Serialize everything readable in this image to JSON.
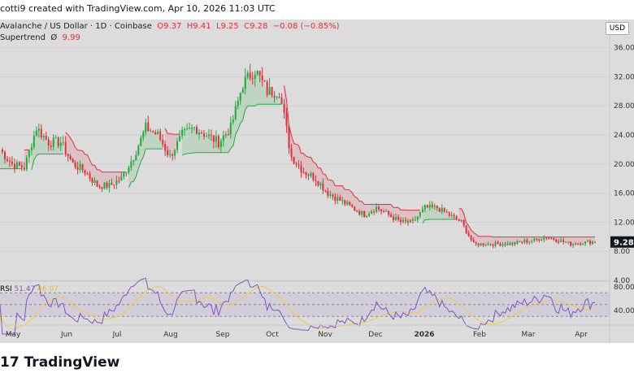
{
  "header": {
    "credit": "cotti9 created with TradingView.com, Apr 10, 2026 11:03 UTC"
  },
  "legend": {
    "symbol": "Avalanche / US Dollar · 1D · Coinbase",
    "open": "O9.37",
    "high": "H9.41",
    "low": "L9.25",
    "close": "C9.28",
    "change": "−0.08 (−0.85%)",
    "indicator": "Supertrend",
    "indicator_icon": "Ø",
    "indicator_value": "9.99"
  },
  "rsi_legend": {
    "name": "RSI",
    "value": "51.47",
    "ma": "46.07"
  },
  "currency_button": "USD",
  "logo": "TradingView",
  "colors": {
    "up": "#22ab3c",
    "down": "#e0303b",
    "rsi": "#7e57c2",
    "rsi_ma": "#f5c842"
  },
  "chart_data": {
    "type": "candlestick",
    "symbol": "AVAX/USD",
    "ylim": [
      4,
      37
    ],
    "y_ticks": [
      "36.00",
      "32.00",
      "28.00",
      "24.00",
      "20.00",
      "16.00",
      "12.00",
      "8.00",
      "4.00"
    ],
    "x_ticks": [
      "May",
      "Jun",
      "Jul",
      "Aug",
      "Sep",
      "Oct",
      "Nov",
      "Dec",
      "2026",
      "Feb",
      "Mar",
      "Apr"
    ],
    "last_price": "9.28",
    "weekly_closes": [
      22,
      20,
      19.5,
      25,
      23,
      23,
      20,
      19,
      17,
      17,
      18,
      21,
      25,
      24,
      21,
      24,
      25,
      24,
      23,
      25,
      31,
      33,
      30,
      30,
      21,
      19,
      18,
      16,
      15,
      14,
      13,
      14,
      13,
      12,
      12,
      14,
      14,
      13,
      12,
      9,
      9,
      9,
      9,
      9.3,
      9.5,
      10,
      9.5,
      9,
      9.2,
      9.28
    ],
    "rsi_ticks": [
      "80.00",
      "40.00"
    ]
  }
}
